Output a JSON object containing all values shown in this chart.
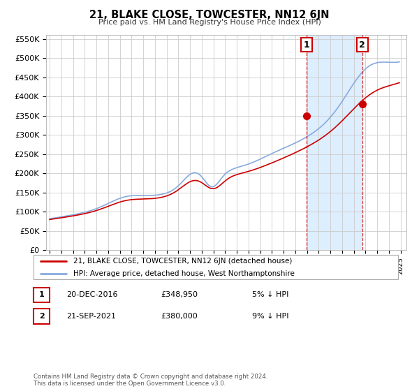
{
  "title": "21, BLAKE CLOSE, TOWCESTER, NN12 6JN",
  "subtitle": "Price paid vs. HM Land Registry's House Price Index (HPI)",
  "ylim": [
    0,
    560000
  ],
  "yticks": [
    0,
    50000,
    100000,
    150000,
    200000,
    250000,
    300000,
    350000,
    400000,
    450000,
    500000,
    550000
  ],
  "ytick_labels": [
    "£0",
    "£50K",
    "£100K",
    "£150K",
    "£200K",
    "£250K",
    "£300K",
    "£350K",
    "£400K",
    "£450K",
    "£500K",
    "£550K"
  ],
  "xlim_start": 1994.7,
  "xlim_end": 2025.5,
  "sale1_date": 2016.97,
  "sale1_price": 348950,
  "sale2_date": 2021.72,
  "sale2_price": 380000,
  "red_line_color": "#cc0000",
  "blue_line_color": "#88aadd",
  "highlight_bg_color": "#ddeeff",
  "grid_color": "#cccccc",
  "background_color": "#ffffff",
  "legend1_text": "21, BLAKE CLOSE, TOWCESTER, NN12 6JN (detached house)",
  "legend2_text": "HPI: Average price, detached house, West Northamptonshire",
  "table_row1": [
    "1",
    "20-DEC-2016",
    "£348,950",
    "5% ↓ HPI"
  ],
  "table_row2": [
    "2",
    "21-SEP-2021",
    "£380,000",
    "9% ↓ HPI"
  ],
  "footer1": "Contains HM Land Registry data © Crown copyright and database right 2024.",
  "footer2": "This data is licensed under the Open Government Licence v3.0."
}
